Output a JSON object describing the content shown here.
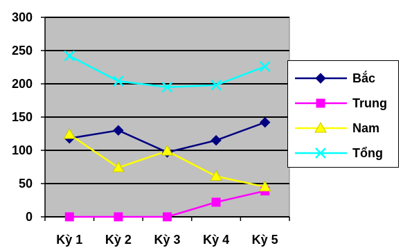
{
  "chart_data": {
    "type": "line",
    "categories": [
      "Kỳ 1",
      "Kỳ 2",
      "Kỳ 3",
      "Kỳ 4",
      "Kỳ 5"
    ],
    "series": [
      {
        "name": "Bắc",
        "values": [
          118,
          130,
          97,
          115,
          142
        ],
        "color": "#000080",
        "marker": "diamond"
      },
      {
        "name": "Trung",
        "values": [
          0,
          0,
          0,
          22,
          39
        ],
        "color": "#ff00ff",
        "marker": "square"
      },
      {
        "name": "Nam",
        "values": [
          124,
          74,
          99,
          61,
          45
        ],
        "color": "#ffff00",
        "marker": "triangle"
      },
      {
        "name": "Tổng",
        "values": [
          242,
          204,
          195,
          198,
          226
        ],
        "color": "#00ffff",
        "marker": "x"
      }
    ],
    "y_ticks": [
      "0",
      "50",
      "100",
      "150",
      "200",
      "250",
      "300"
    ],
    "ylim": [
      0,
      300
    ],
    "grid": true,
    "legend_position": "right",
    "plot_background": "#c0c0c0"
  }
}
